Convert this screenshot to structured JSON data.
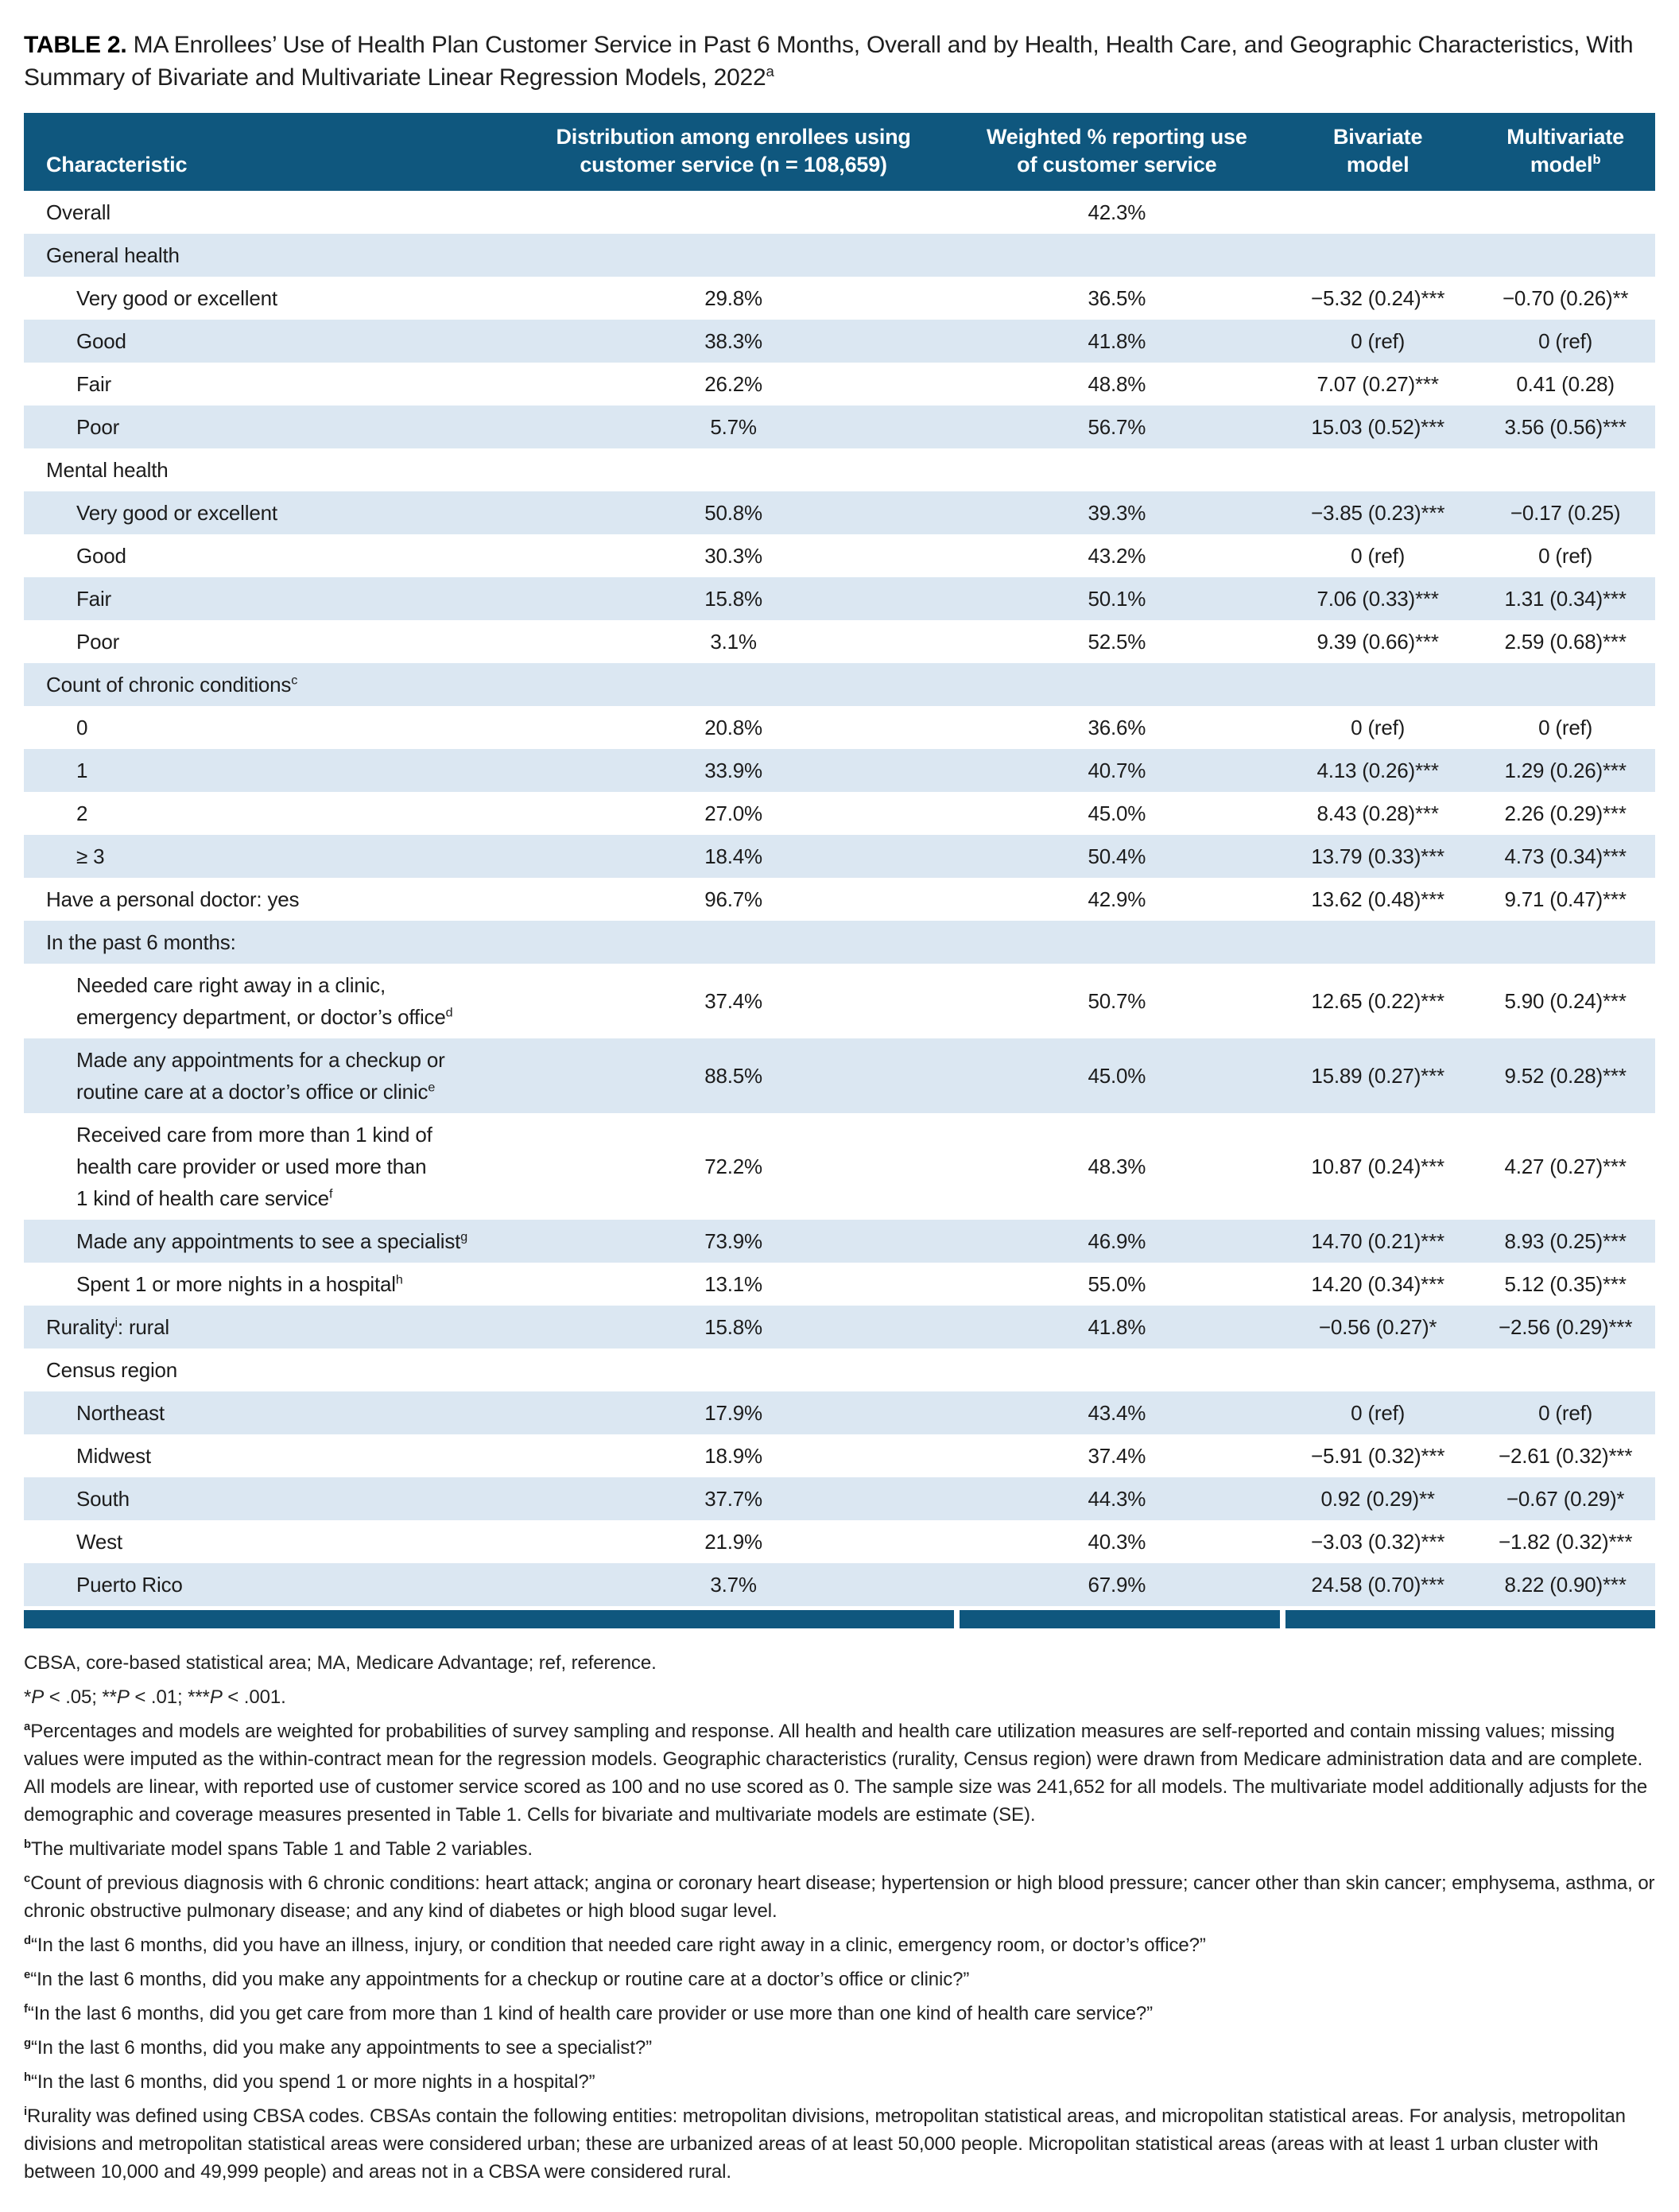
{
  "title": {
    "prefix": "TABLE 2.",
    "text": "MA Enrollees’ Use of Health Plan Customer Service in Past 6 Months, Overall and by Health, Health Care, and Geographic Characteristics, With\nSummary of Bivariate and Multivariate Linear Regression Models, 2022",
    "sup": "a"
  },
  "colors": {
    "header_bg": "#0F577E",
    "stripe_bg": "#DBE7F2",
    "bottom_bar": "#0F577E",
    "text": "#1C1C1C"
  },
  "table": {
    "columns": [
      {
        "id": "characteristic",
        "label": "Characteristic",
        "sup": ""
      },
      {
        "id": "distribution",
        "label": "Distribution among enrollees using\ncustomer service (n = 108,659)",
        "sup": ""
      },
      {
        "id": "weighted",
        "label": "Weighted % reporting use\nof customer service",
        "sup": ""
      },
      {
        "id": "bivariate",
        "label": "Bivariate\nmodel",
        "sup": ""
      },
      {
        "id": "multivariate",
        "label": "Multivariate\nmodel",
        "sup": "b"
      }
    ],
    "rows": [
      {
        "label": "Overall",
        "indent": false,
        "values": [
          "",
          "42.3%",
          "",
          ""
        ]
      },
      {
        "label": "General health",
        "indent": false,
        "values": [
          "",
          "",
          "",
          ""
        ]
      },
      {
        "label": "Very good or excellent",
        "indent": true,
        "values": [
          "29.8%",
          "36.5%",
          "−5.32 (0.24)***",
          "−0.70 (0.26)**"
        ]
      },
      {
        "label": "Good",
        "indent": true,
        "values": [
          "38.3%",
          "41.8%",
          "0 (ref)",
          "0 (ref)"
        ]
      },
      {
        "label": "Fair",
        "indent": true,
        "values": [
          "26.2%",
          "48.8%",
          "7.07 (0.27)***",
          "0.41 (0.28)"
        ]
      },
      {
        "label": "Poor",
        "indent": true,
        "values": [
          "5.7%",
          "56.7%",
          "15.03 (0.52)***",
          "3.56 (0.56)***"
        ]
      },
      {
        "label": "Mental health",
        "indent": false,
        "values": [
          "",
          "",
          "",
          ""
        ]
      },
      {
        "label": "Very good or excellent",
        "indent": true,
        "values": [
          "50.8%",
          "39.3%",
          "−3.85 (0.23)***",
          "−0.17 (0.25)"
        ]
      },
      {
        "label": "Good",
        "indent": true,
        "values": [
          "30.3%",
          "43.2%",
          "0 (ref)",
          "0 (ref)"
        ]
      },
      {
        "label": "Fair",
        "indent": true,
        "values": [
          "15.8%",
          "50.1%",
          "7.06 (0.33)***",
          "1.31 (0.34)***"
        ]
      },
      {
        "label": "Poor",
        "indent": true,
        "values": [
          "3.1%",
          "52.5%",
          "9.39 (0.66)***",
          "2.59 (0.68)***"
        ]
      },
      {
        "label": "Count of chronic conditions",
        "sup": "c",
        "indent": false,
        "values": [
          "",
          "",
          "",
          ""
        ]
      },
      {
        "label": "0",
        "indent": true,
        "values": [
          "20.8%",
          "36.6%",
          "0 (ref)",
          "0 (ref)"
        ]
      },
      {
        "label": "1",
        "indent": true,
        "values": [
          "33.9%",
          "40.7%",
          "4.13 (0.26)***",
          "1.29 (0.26)***"
        ]
      },
      {
        "label": "2",
        "indent": true,
        "values": [
          "27.0%",
          "45.0%",
          "8.43 (0.28)***",
          "2.26 (0.29)***"
        ]
      },
      {
        "label": "≥ 3",
        "indent": true,
        "values": [
          "18.4%",
          "50.4%",
          "13.79 (0.33)***",
          "4.73 (0.34)***"
        ]
      },
      {
        "label": "Have a personal doctor: yes",
        "indent": false,
        "values": [
          "96.7%",
          "42.9%",
          "13.62 (0.48)***",
          "9.71 (0.47)***"
        ]
      },
      {
        "label": "In the past 6 months:",
        "indent": false,
        "values": [
          "",
          "",
          "",
          ""
        ]
      },
      {
        "label": "Needed care right away in a clinic,\nemergency department, or doctor’s office",
        "sup": "d",
        "indent": true,
        "values": [
          "37.4%",
          "50.7%",
          "12.65 (0.22)***",
          "5.90 (0.24)***"
        ]
      },
      {
        "label": "Made any appointments for a checkup or\nroutine care at a doctor’s office or clinic",
        "sup": "e",
        "indent": true,
        "values": [
          "88.5%",
          "45.0%",
          "15.89 (0.27)***",
          "9.52 (0.28)***"
        ]
      },
      {
        "label": "Received care from more than 1 kind of\nhealth care provider or used more than\n1 kind of health care service",
        "sup": "f",
        "indent": true,
        "values": [
          "72.2%",
          "48.3%",
          "10.87 (0.24)***",
          "4.27 (0.27)***"
        ]
      },
      {
        "label": "Made any appointments to see a specialist",
        "sup": "g",
        "indent": true,
        "values": [
          "73.9%",
          "46.9%",
          "14.70 (0.21)***",
          "8.93 (0.25)***"
        ]
      },
      {
        "label": "Spent 1 or more nights in a hospital",
        "sup": "h",
        "indent": true,
        "values": [
          "13.1%",
          "55.0%",
          "14.20 (0.34)***",
          "5.12 (0.35)***"
        ]
      },
      {
        "label": "Rurality",
        "sup": "i",
        "suffix": ": rural",
        "indent": false,
        "values": [
          "15.8%",
          "41.8%",
          "−0.56 (0.27)*",
          "−2.56 (0.29)***"
        ]
      },
      {
        "label": "Census region",
        "indent": false,
        "values": [
          "",
          "",
          "",
          ""
        ]
      },
      {
        "label": "Northeast",
        "indent": true,
        "values": [
          "17.9%",
          "43.4%",
          "0 (ref)",
          "0 (ref)"
        ]
      },
      {
        "label": "Midwest",
        "indent": true,
        "values": [
          "18.9%",
          "37.4%",
          "−5.91 (0.32)***",
          "−2.61 (0.32)***"
        ]
      },
      {
        "label": "South",
        "indent": true,
        "values": [
          "37.7%",
          "44.3%",
          "0.92 (0.29)**",
          "−0.67 (0.29)*"
        ]
      },
      {
        "label": "West",
        "indent": true,
        "values": [
          "21.9%",
          "40.3%",
          "−3.03 (0.32)***",
          "−1.82 (0.32)***"
        ]
      },
      {
        "label": "Puerto Rico",
        "indent": true,
        "values": [
          "3.7%",
          "67.9%",
          "24.58 (0.70)***",
          "8.22 (0.90)***"
        ]
      }
    ]
  },
  "footnotes": [
    {
      "marker": "",
      "text": "CBSA, core-based statistical area; MA, Medicare Advantage; ref, reference."
    },
    {
      "marker": "",
      "text": "*P < .05; **P < .01; ***P < .001.",
      "italic_p": true
    },
    {
      "marker": "a",
      "text": "Percentages and models are weighted for probabilities of survey sampling and response. All health and health care utilization measures are self-reported and contain missing values; missing values were imputed as the within-contract mean for the regression models. Geographic characteristics (rurality, Census region) were drawn from Medicare administration data and are complete. All models are linear, with reported use of customer service scored as 100 and no use scored as 0. The sample size was 241,652 for all models. The multivariate model additionally adjusts for the demographic and coverage measures presented in Table 1. Cells for bivariate and multivariate models are estimate (SE)."
    },
    {
      "marker": "b",
      "text": "The multivariate model spans Table 1 and Table 2 variables."
    },
    {
      "marker": "c",
      "text": "Count of previous diagnosis with 6 chronic conditions: heart attack; angina or coronary heart disease; hypertension or high blood pressure; cancer other than skin cancer; emphysema, asthma, or chronic obstructive pulmonary disease; and any kind of diabetes or high blood sugar level."
    },
    {
      "marker": "d",
      "text": "“In the last 6 months, did you have an illness, injury, or condition that needed care right away in a clinic, emergency room, or doctor’s office?”"
    },
    {
      "marker": "e",
      "text": "“In the last 6 months, did you make any appointments for a checkup or routine care at a doctor’s office or clinic?”"
    },
    {
      "marker": "f",
      "text": "“In the last 6 months, did you get care from more than 1 kind of health care provider or use more than one kind of health care service?”"
    },
    {
      "marker": "g",
      "text": "“In the last 6 months, did you make any appointments to see a specialist?”"
    },
    {
      "marker": "h",
      "text": "“In the last 6 months, did you spend 1 or more nights in a hospital?”"
    },
    {
      "marker": "i",
      "text": "Rurality was defined using CBSA codes. CBSAs contain the following entities: metropolitan divisions, metropolitan statistical areas, and micropolitan statistical areas. For analysis, metropolitan divisions and metropolitan statistical areas were considered urban; these are urbanized areas of at least 50,000 people. Micropolitan statistical areas (areas with at least 1 urban cluster with between 10,000 and 49,999 people) and areas not in a CBSA were considered rural."
    }
  ]
}
